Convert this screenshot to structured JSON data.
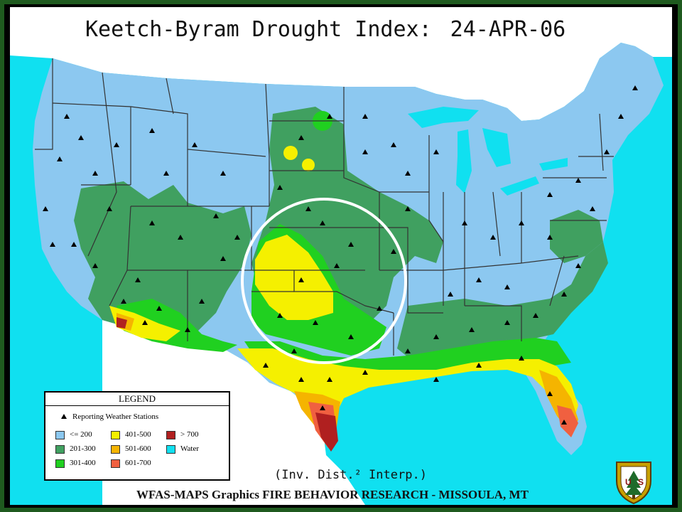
{
  "map": {
    "title": "Keetch-Byram Drought Index:",
    "date": "24-APR-06",
    "interpolation_note": "(Inv. Dist.² Interp.)",
    "footer": "WFAS-MAPS Graphics  FIRE BEHAVIOR RESEARCH - MISSOULA, MT",
    "highlight": "white circle around the southern plains (KS / OK / TX panhandle)"
  },
  "legend": {
    "title": "LEGEND",
    "stations_label": "Reporting Weather Stations",
    "items": [
      {
        "label": "<= 200",
        "color": "#8cc8f0"
      },
      {
        "label": "201-300",
        "color": "#40a060"
      },
      {
        "label": "301-400",
        "color": "#20d020"
      },
      {
        "label": "401-500",
        "color": "#f5f000"
      },
      {
        "label": "501-600",
        "color": "#f5b400"
      },
      {
        "label": "601-700",
        "color": "#f06040"
      },
      {
        "label": "> 700",
        "color": "#b02020"
      },
      {
        "label": "Water",
        "color": "#10e0f0"
      }
    ]
  },
  "colors": {
    "frame": "#1f5a1f",
    "water": "#10e0f0",
    "land_low": "#8cc8f0",
    "mod": "#40a060",
    "green": "#20d020",
    "yellow": "#f5f000",
    "orange": "#f5b400",
    "salmon": "#f06040",
    "red": "#b02020",
    "state_lines": "#333333"
  },
  "badge_icon": "us-forest-service-shield-icon"
}
